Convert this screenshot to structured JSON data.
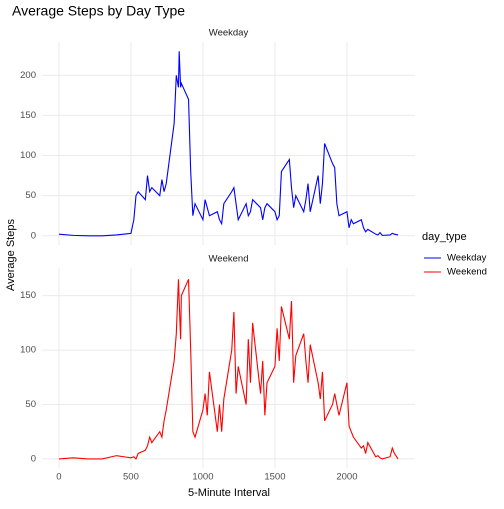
{
  "title": "Average Steps by Day Type",
  "xlabel": "5-Minute Interval",
  "ylabel": "Average Steps",
  "legend_title": "day_type",
  "chart_data": [
    {
      "type": "line",
      "title": "Weekday",
      "x": [
        0,
        100,
        200,
        300,
        400,
        500,
        520,
        535,
        550,
        600,
        615,
        630,
        645,
        700,
        715,
        730,
        745,
        800,
        815,
        830,
        835,
        845,
        850,
        900,
        915,
        930,
        945,
        1000,
        1015,
        1030,
        1045,
        1100,
        1115,
        1130,
        1145,
        1200,
        1215,
        1230,
        1245,
        1300,
        1315,
        1330,
        1345,
        1400,
        1415,
        1430,
        1445,
        1500,
        1515,
        1530,
        1545,
        1600,
        1615,
        1630,
        1645,
        1700,
        1715,
        1730,
        1745,
        1800,
        1815,
        1830,
        1845,
        1900,
        1915,
        1930,
        1945,
        2000,
        2015,
        2030,
        2045,
        2100,
        2115,
        2130,
        2145,
        2200,
        2215,
        2230,
        2245,
        2300,
        2315,
        2330,
        2355
      ],
      "series": [
        {
          "name": "Weekday",
          "color": "#0000ff",
          "values": [
            2,
            0.5,
            0,
            0,
            1,
            3,
            20,
            50,
            55,
            45,
            75,
            55,
            60,
            50,
            70,
            55,
            65,
            140,
            200,
            185,
            230,
            185,
            190,
            170,
            80,
            25,
            40,
            20,
            45,
            35,
            25,
            30,
            20,
            15,
            40,
            55,
            60,
            40,
            20,
            40,
            25,
            30,
            45,
            35,
            20,
            35,
            40,
            30,
            20,
            25,
            80,
            95,
            60,
            35,
            50,
            30,
            45,
            65,
            30,
            75,
            40,
            65,
            115,
            90,
            85,
            40,
            25,
            30,
            10,
            20,
            15,
            20,
            10,
            5,
            8,
            2,
            1,
            4,
            0.5,
            1,
            3,
            2,
            1
          ]
        }
      ],
      "xlim": [
        -117.75,
        2472.75
      ],
      "xticks": [
        0,
        500,
        1000,
        1500,
        2000
      ],
      "ylim": [
        -11.5,
        241.5
      ],
      "yticks": [
        0,
        50,
        100,
        150,
        200
      ]
    },
    {
      "type": "line",
      "title": "Weekend",
      "x": [
        0,
        100,
        200,
        300,
        400,
        500,
        520,
        535,
        550,
        600,
        615,
        630,
        645,
        700,
        715,
        730,
        745,
        800,
        815,
        830,
        835,
        845,
        850,
        900,
        915,
        930,
        945,
        1000,
        1015,
        1030,
        1045,
        1100,
        1115,
        1130,
        1145,
        1200,
        1215,
        1230,
        1245,
        1300,
        1315,
        1330,
        1345,
        1400,
        1415,
        1430,
        1445,
        1500,
        1515,
        1530,
        1545,
        1600,
        1615,
        1630,
        1645,
        1700,
        1715,
        1730,
        1745,
        1800,
        1815,
        1830,
        1845,
        1900,
        1915,
        1930,
        1945,
        2000,
        2015,
        2030,
        2045,
        2100,
        2115,
        2130,
        2145,
        2200,
        2215,
        2230,
        2245,
        2300,
        2315,
        2330,
        2355
      ],
      "series": [
        {
          "name": "Weekend",
          "color": "#ff0000",
          "values": [
            0,
            1,
            0,
            0,
            3,
            1,
            2,
            0,
            5,
            8,
            12,
            20,
            15,
            25,
            20,
            35,
            45,
            90,
            115,
            165,
            145,
            110,
            150,
            165,
            100,
            25,
            20,
            45,
            60,
            40,
            80,
            25,
            50,
            25,
            55,
            100,
            135,
            60,
            85,
            50,
            110,
            70,
            125,
            60,
            90,
            40,
            70,
            85,
            120,
            90,
            140,
            110,
            145,
            70,
            95,
            115,
            90,
            70,
            105,
            70,
            55,
            80,
            35,
            50,
            60,
            50,
            40,
            70,
            30,
            25,
            20,
            10,
            12,
            5,
            15,
            2,
            3,
            1,
            0,
            2,
            10,
            5,
            0
          ]
        }
      ],
      "xlim": [
        -117.75,
        2472.75
      ],
      "xticks": [
        0,
        500,
        1000,
        1500,
        2000
      ],
      "ylim": [
        -8.35,
        175.4
      ],
      "yticks": [
        0,
        50,
        100,
        150
      ]
    }
  ]
}
